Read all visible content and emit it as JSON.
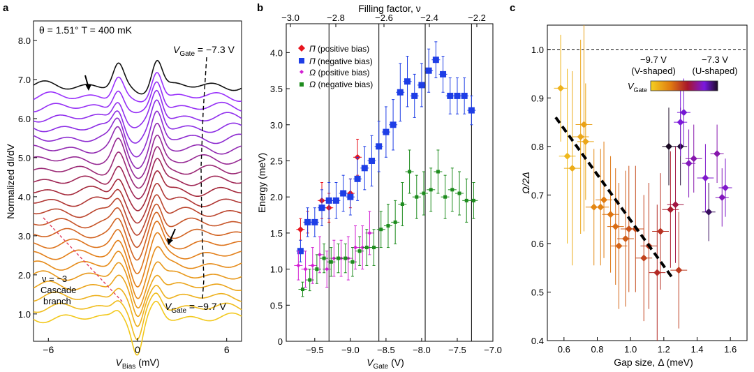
{
  "panels": {
    "a": {
      "letter": "a",
      "annotation": "θ = 1.51° T = 400 mK",
      "gate_top_label": "−7.3 V",
      "gate_bottom_label": "−9.7 V",
      "vgate_prefix": "V",
      "vgate_sub": "Gate",
      "vgate_eq": " = ",
      "cascade_nu": "ν = −3",
      "cascade_line1": "Cascade",
      "cascade_line2": "branch",
      "ylabel": "Normalized dI/dV",
      "xlabel_v": "V",
      "xlabel_sub": "Bias",
      "xlabel_unit": " (mV)",
      "xticks": [
        "−6",
        "0",
        "6"
      ],
      "yticks": [
        "1.0",
        "2.0",
        "3.0",
        "4.0",
        "5.0",
        "6.0",
        "7.0",
        "8.0"
      ]
    },
    "b": {
      "letter": "b",
      "top_label": "Filling factor, ν",
      "top_ticks": [
        "−3.0",
        "−2.8",
        "−2.6",
        "−2.4",
        "−2.2"
      ],
      "ylabel": "Energy (meV)",
      "yticks": [
        "0",
        "0.5",
        "1.0",
        "1.5",
        "2.0",
        "2.5",
        "3.0",
        "3.5",
        "4.0"
      ],
      "xticks": [
        "−9.5",
        "−9.0",
        "−8.5",
        "−8.0",
        "−7.5",
        "−7.0"
      ],
      "xlabel_v": "V",
      "xlabel_sub": "Gate",
      "xlabel_unit": " (V)",
      "legend": [
        {
          "sym": "Π",
          "text": " (positive bias)",
          "color": "#e8141e"
        },
        {
          "sym": "Π",
          "text": " (negative bias)",
          "color": "#1e3ee6"
        },
        {
          "sym": "Ω",
          "text": " (positive bias)",
          "color": "#d21ed2"
        },
        {
          "sym": "Ω",
          "text": " (negative bias)",
          "color": "#1e8c1e"
        }
      ]
    },
    "c": {
      "letter": "c",
      "ylabel": "Ω/2Δ",
      "xlabel": "Gap size, Δ (meV)",
      "yticks": [
        "0.4",
        "0.5",
        "0.6",
        "0.7",
        "0.8",
        "0.9",
        "1.0"
      ],
      "xticks": [
        "0.6",
        "0.8",
        "1.0",
        "1.2",
        "1.4",
        "1.6"
      ],
      "cbar_left_v": "−9.7 V",
      "cbar_left_s": "(V-shaped)",
      "cbar_right_v": "−7.3 V",
      "cbar_right_s": "(U-shaped)",
      "cbar_label_v": "V",
      "cbar_label_sub": "Gate"
    }
  },
  "chart_data": [
    {
      "panel": "a",
      "type": "line",
      "title": "θ = 1.51° T = 400 mK",
      "xlabel": "V_Bias (mV)",
      "ylabel": "Normalized dI/dV",
      "xlim": [
        -7,
        7
      ],
      "ylim": [
        0.3,
        8.5
      ],
      "n_curves": 23,
      "vgate_range": [
        -9.7,
        -7.3
      ],
      "offset_per_curve": 0.27
    },
    {
      "panel": "b",
      "type": "scatter",
      "xlabel": "V_Gate (V)",
      "ylabel": "Energy (meV)",
      "xlim": [
        -9.9,
        -7.0
      ],
      "ylim": [
        0,
        4.4
      ],
      "vertical_lines": [
        -9.3,
        -8.6,
        -7.95,
        -7.3
      ],
      "series": [
        {
          "name": "Π (positive bias)",
          "color": "#e8141e",
          "marker": "diamond",
          "x": [
            -9.7,
            -9.6,
            -9.4,
            -9.3,
            -9.0,
            -8.9
          ],
          "y": [
            1.55,
            1.65,
            1.95,
            1.85,
            2.05,
            2.55
          ],
          "err": [
            0.15,
            0.15,
            0.25,
            0.2,
            0.2,
            0.25
          ]
        },
        {
          "name": "Π (negative bias)",
          "color": "#1e3ee6",
          "marker": "square",
          "x": [
            -9.7,
            -9.6,
            -9.5,
            -9.4,
            -9.3,
            -9.2,
            -9.1,
            -9.0,
            -8.9,
            -8.8,
            -8.7,
            -8.6,
            -8.5,
            -8.4,
            -8.3,
            -8.2,
            -8.1,
            -8.0,
            -7.9,
            -7.8,
            -7.7,
            -7.6,
            -7.5,
            -7.4,
            -7.3
          ],
          "y": [
            1.25,
            1.65,
            1.65,
            1.85,
            1.95,
            1.95,
            2.05,
            2.0,
            2.25,
            2.4,
            2.5,
            2.7,
            2.9,
            3.0,
            3.45,
            3.6,
            3.4,
            3.55,
            3.75,
            3.9,
            3.7,
            3.4,
            3.4,
            3.4,
            3.2
          ],
          "err": [
            0.15,
            0.2,
            0.2,
            0.25,
            0.25,
            0.25,
            0.25,
            0.25,
            0.3,
            0.3,
            0.35,
            0.35,
            0.35,
            0.35,
            0.4,
            0.35,
            0.3,
            0.3,
            0.3,
            0.25,
            0.25,
            0.25,
            0.25,
            0.25,
            0.2
          ]
        },
        {
          "name": "Ω (positive bias)",
          "color": "#d21ed2",
          "marker": "diamond",
          "x": [
            -9.7,
            -9.6,
            -9.5,
            -9.4,
            -9.3,
            -9.2,
            -9.1,
            -9.0,
            -8.9,
            -8.8,
            -8.7
          ],
          "y": [
            1.05,
            1.0,
            1.05,
            1.2,
            1.0,
            1.15,
            1.15,
            1.15,
            1.3,
            1.3,
            1.5
          ],
          "err": [
            0.2,
            0.25,
            0.25,
            0.25,
            0.25,
            0.25,
            0.25,
            0.3,
            0.3,
            0.3,
            0.3
          ]
        },
        {
          "name": "Ω (negative bias)",
          "color": "#1e8c1e",
          "marker": "square",
          "x": [
            -9.7,
            -9.6,
            -9.5,
            -9.4,
            -9.3,
            -9.2,
            -9.1,
            -9.0,
            -8.9,
            -8.8,
            -8.7,
            -8.6,
            -8.5,
            -8.4,
            -8.3,
            -8.2,
            -8.1,
            -8.0,
            -7.9,
            -7.8,
            -7.7,
            -7.6,
            -7.5,
            -7.4,
            -7.3
          ],
          "y": [
            0.72,
            0.85,
            1.0,
            1.15,
            1.1,
            1.15,
            1.15,
            1.1,
            1.25,
            1.3,
            1.3,
            1.55,
            1.6,
            1.65,
            1.9,
            2.35,
            2.0,
            2.05,
            2.1,
            2.35,
            2.0,
            2.1,
            2.05,
            1.95,
            1.95
          ],
          "err": [
            0.1,
            0.15,
            0.2,
            0.2,
            0.2,
            0.2,
            0.2,
            0.2,
            0.2,
            0.25,
            0.25,
            0.25,
            0.3,
            0.3,
            0.3,
            0.3,
            0.3,
            0.3,
            0.3,
            0.3,
            0.3,
            0.3,
            0.3,
            0.3,
            0.25
          ]
        }
      ]
    },
    {
      "panel": "c",
      "type": "scatter",
      "xlabel": "Gap size, Δ (meV)",
      "ylabel": "Ω/2Δ",
      "xlim": [
        0.5,
        1.7
      ],
      "ylim": [
        0.4,
        1.05
      ],
      "reference_line_y": 1.0,
      "fit_line": {
        "x": [
          0.55,
          1.25
        ],
        "y": [
          0.86,
          0.53
        ]
      },
      "colorbar": {
        "min": -9.7,
        "max": -7.3,
        "label": "V_Gate"
      },
      "points": [
        {
          "x": 0.58,
          "y": 0.92,
          "xe": 0.04,
          "ye": 0.11,
          "vg": -9.45
        },
        {
          "x": 0.62,
          "y": 0.78,
          "xe": 0.05,
          "ye": 0.18,
          "vg": -9.5
        },
        {
          "x": 0.65,
          "y": 0.755,
          "xe": 0.05,
          "ye": 0.2,
          "vg": -9.4
        },
        {
          "x": 0.7,
          "y": 0.82,
          "xe": 0.05,
          "ye": 0.2,
          "vg": -9.35
        },
        {
          "x": 0.72,
          "y": 0.845,
          "xe": 0.05,
          "ye": 0.22,
          "vg": -9.3
        },
        {
          "x": 0.73,
          "y": 0.81,
          "xe": 0.05,
          "ye": 0.12,
          "vg": -9.35
        },
        {
          "x": 0.78,
          "y": 0.675,
          "xe": 0.05,
          "ye": 0.12,
          "vg": -9.1
        },
        {
          "x": 0.82,
          "y": 0.675,
          "xe": 0.05,
          "ye": 0.12,
          "vg": -9.05
        },
        {
          "x": 0.84,
          "y": 0.69,
          "xe": 0.05,
          "ye": 0.12,
          "vg": -9.0
        },
        {
          "x": 0.88,
          "y": 0.66,
          "xe": 0.05,
          "ye": 0.12,
          "vg": -8.95
        },
        {
          "x": 0.91,
          "y": 0.635,
          "xe": 0.05,
          "ye": 0.12,
          "vg": -8.9
        },
        {
          "x": 0.93,
          "y": 0.595,
          "xe": 0.05,
          "ye": 0.13,
          "vg": -8.85
        },
        {
          "x": 0.97,
          "y": 0.61,
          "xe": 0.05,
          "ye": 0.14,
          "vg": -8.8
        },
        {
          "x": 0.99,
          "y": 0.63,
          "xe": 0.05,
          "ye": 0.13,
          "vg": -8.75
        },
        {
          "x": 1.03,
          "y": 0.63,
          "xe": 0.05,
          "ye": 0.13,
          "vg": -8.7
        },
        {
          "x": 1.08,
          "y": 0.57,
          "xe": 0.05,
          "ye": 0.13,
          "vg": -8.65
        },
        {
          "x": 1.11,
          "y": 0.595,
          "xe": 0.05,
          "ye": 0.13,
          "vg": -8.6
        },
        {
          "x": 1.16,
          "y": 0.54,
          "xe": 0.05,
          "ye": 0.14,
          "vg": -8.5
        },
        {
          "x": 1.18,
          "y": 0.625,
          "xe": 0.05,
          "ye": 0.12,
          "vg": -8.55
        },
        {
          "x": 1.24,
          "y": 0.67,
          "xe": 0.05,
          "ye": 0.12,
          "vg": -8.4
        },
        {
          "x": 1.27,
          "y": 0.68,
          "xe": 0.05,
          "ye": 0.12,
          "vg": -8.3
        },
        {
          "x": 1.29,
          "y": 0.545,
          "xe": 0.05,
          "ye": 0.12,
          "vg": -8.6
        },
        {
          "x": 1.23,
          "y": 0.8,
          "xe": 0.04,
          "ye": 0.08,
          "vg": -7.3
        },
        {
          "x": 1.3,
          "y": 0.8,
          "xe": 0.04,
          "ye": 0.08,
          "vg": -7.35
        },
        {
          "x": 1.3,
          "y": 0.85,
          "xe": 0.04,
          "ye": 0.07,
          "vg": -7.8
        },
        {
          "x": 1.32,
          "y": 0.87,
          "xe": 0.04,
          "ye": 0.07,
          "vg": -7.75
        },
        {
          "x": 1.35,
          "y": 0.765,
          "xe": 0.04,
          "ye": 0.07,
          "vg": -7.9
        },
        {
          "x": 1.38,
          "y": 0.775,
          "xe": 0.05,
          "ye": 0.07,
          "vg": -7.95
        },
        {
          "x": 1.45,
          "y": 0.735,
          "xe": 0.05,
          "ye": 0.07,
          "vg": -7.85
        },
        {
          "x": 1.47,
          "y": 0.665,
          "xe": 0.04,
          "ye": 0.06,
          "vg": -7.45
        },
        {
          "x": 1.52,
          "y": 0.785,
          "xe": 0.04,
          "ye": 0.06,
          "vg": -7.95
        },
        {
          "x": 1.55,
          "y": 0.695,
          "xe": 0.04,
          "ye": 0.06,
          "vg": -7.9
        },
        {
          "x": 1.57,
          "y": 0.715,
          "xe": 0.04,
          "ye": 0.06,
          "vg": -7.85
        }
      ]
    }
  ]
}
